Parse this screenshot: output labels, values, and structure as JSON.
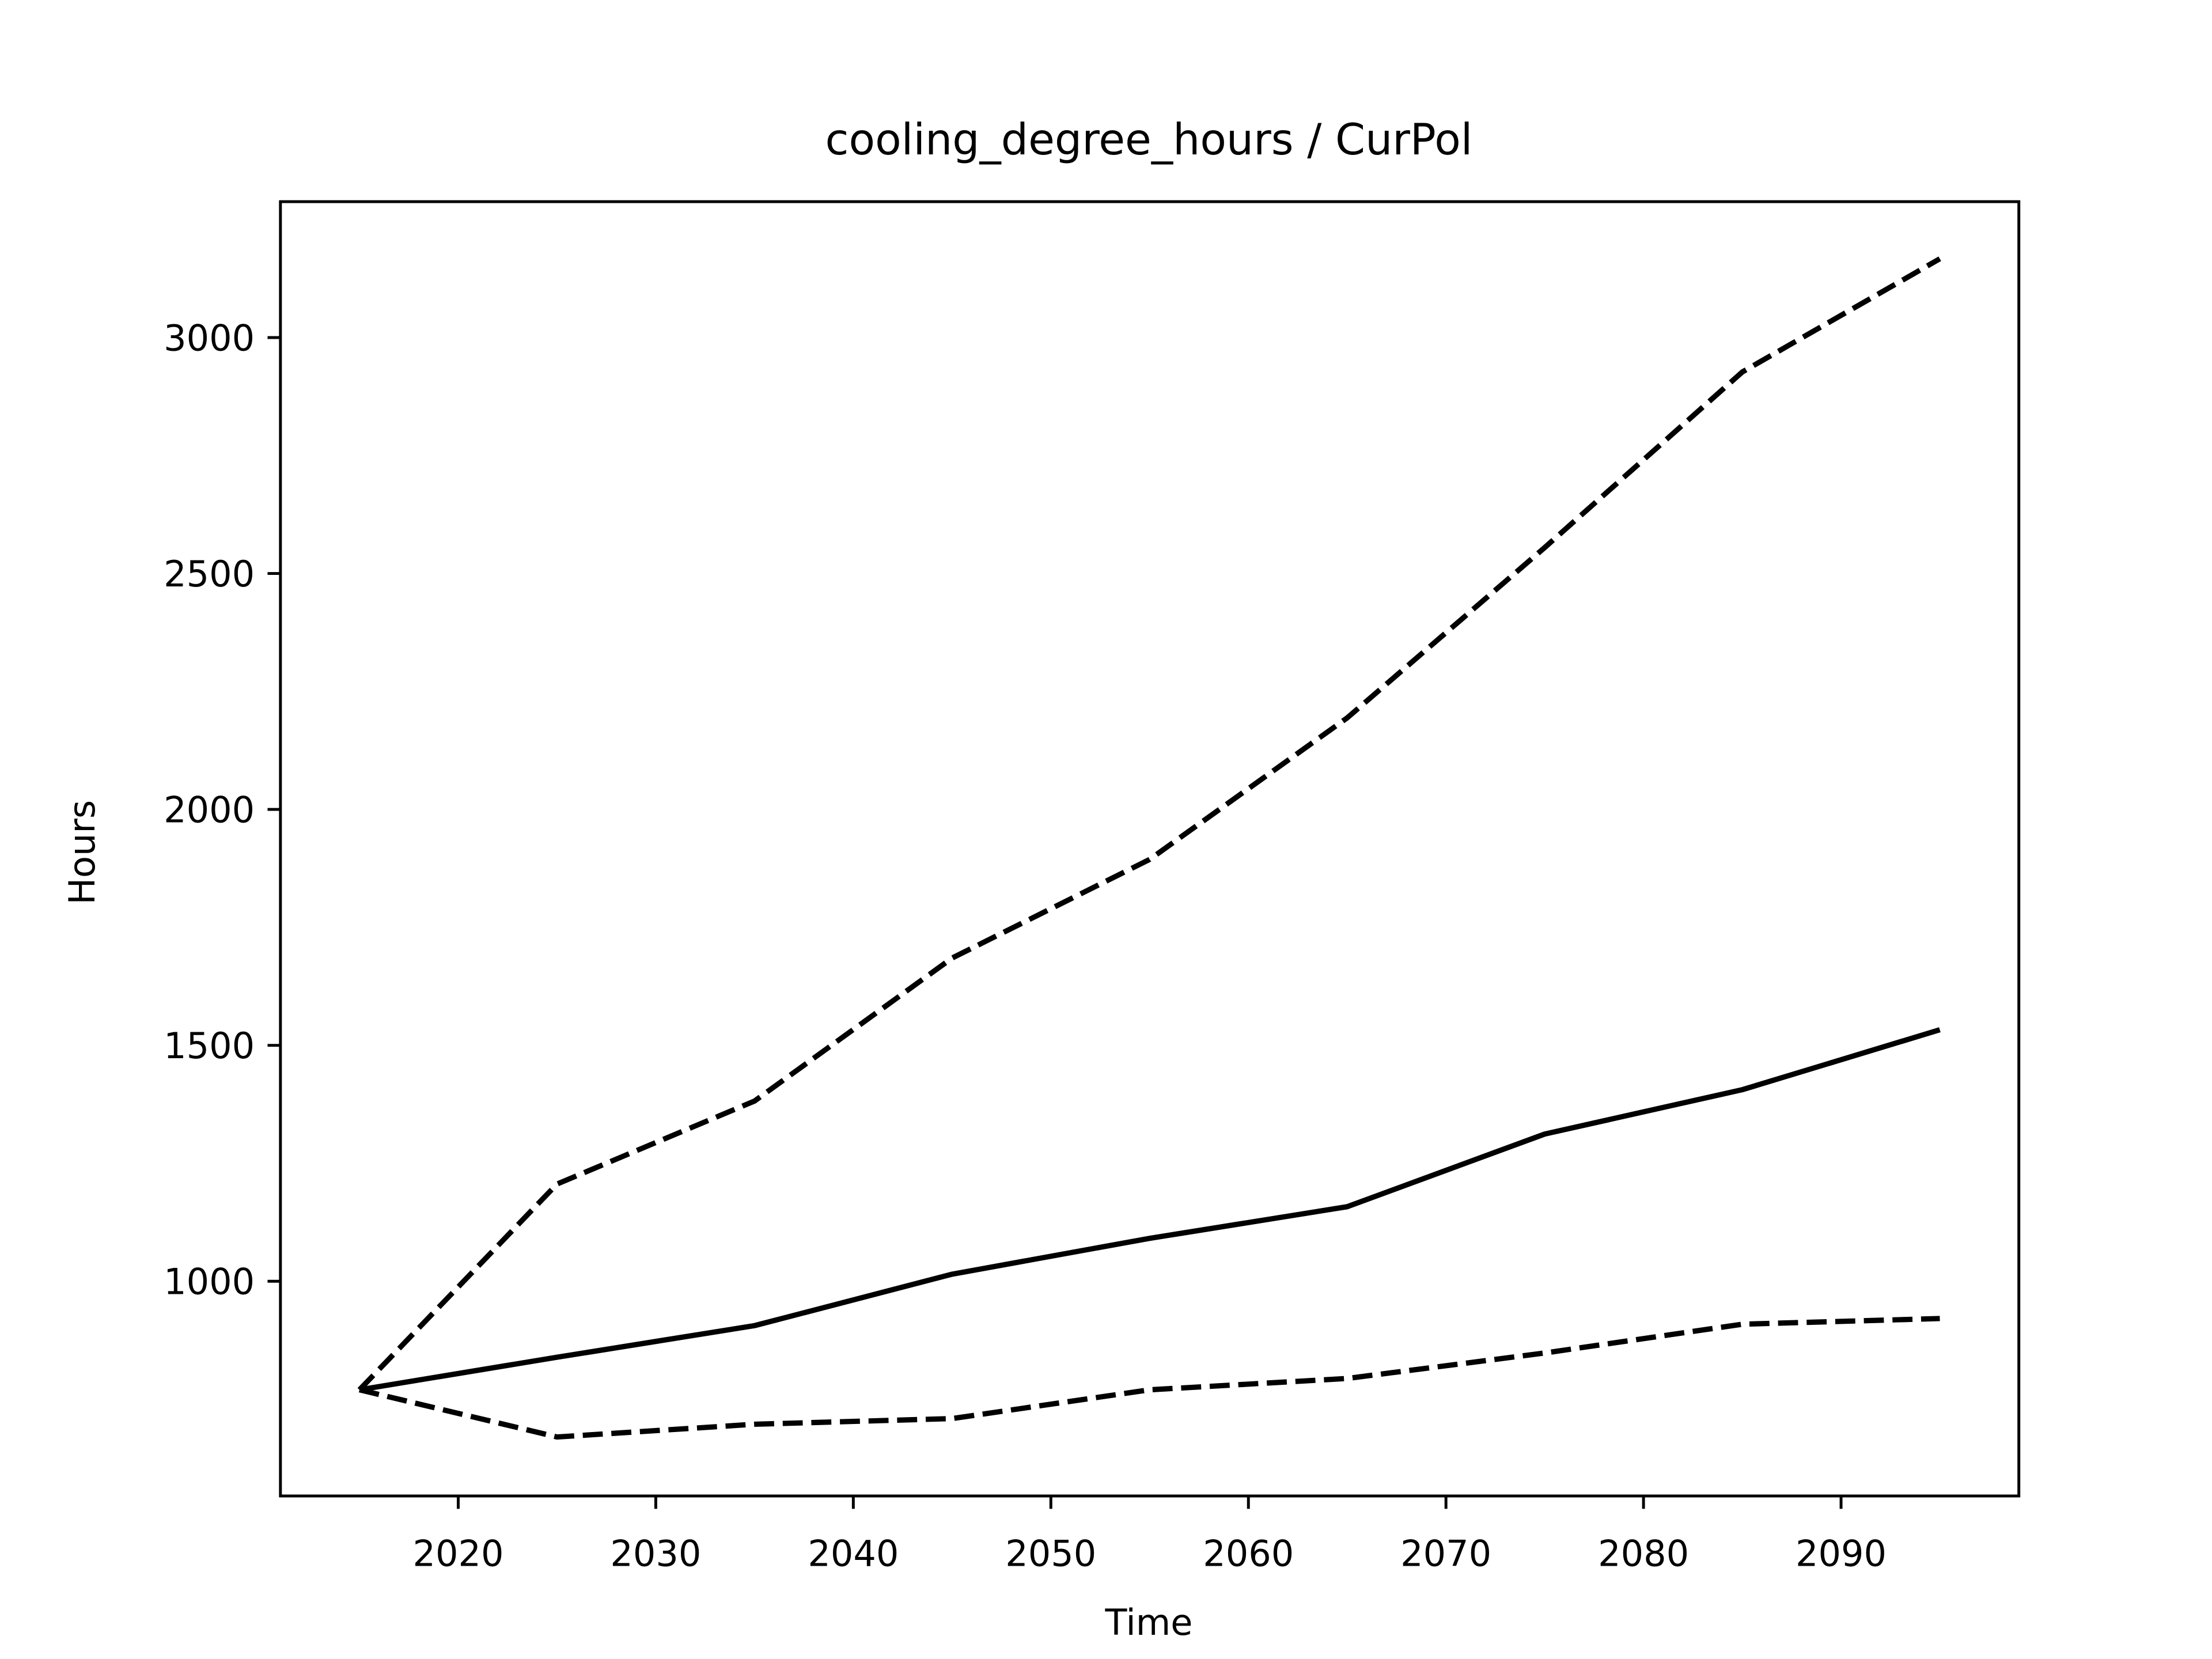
{
  "chart_data": {
    "type": "line",
    "title": "cooling_degree_hours / CurPol",
    "xlabel": "Time",
    "ylabel": "Hours",
    "x": [
      2015,
      2025,
      2035,
      2045,
      2055,
      2065,
      2075,
      2085,
      2095
    ],
    "series": [
      {
        "color": "#000000",
        "dashed": false,
        "values": [
          770,
          839,
          906,
          1015,
          1091,
          1158,
          1312,
          1406,
          1533
        ]
      },
      {
        "color": "#000000",
        "dashed": true,
        "values": [
          770,
          1206,
          1382,
          1685,
          1894,
          2194,
          2555,
          2927,
          3167
        ]
      },
      {
        "color": "#000000",
        "dashed": true,
        "values": [
          770,
          670,
          697,
          709,
          770,
          794,
          848,
          909,
          921
        ]
      }
    ],
    "xlim": [
      2011,
      2099
    ],
    "ylim": [
      545,
      3288
    ],
    "xticks": [
      2020,
      2030,
      2040,
      2050,
      2060,
      2070,
      2080,
      2090
    ],
    "yticks": [
      1000,
      1500,
      2000,
      2500,
      3000
    ],
    "grid": false
  }
}
